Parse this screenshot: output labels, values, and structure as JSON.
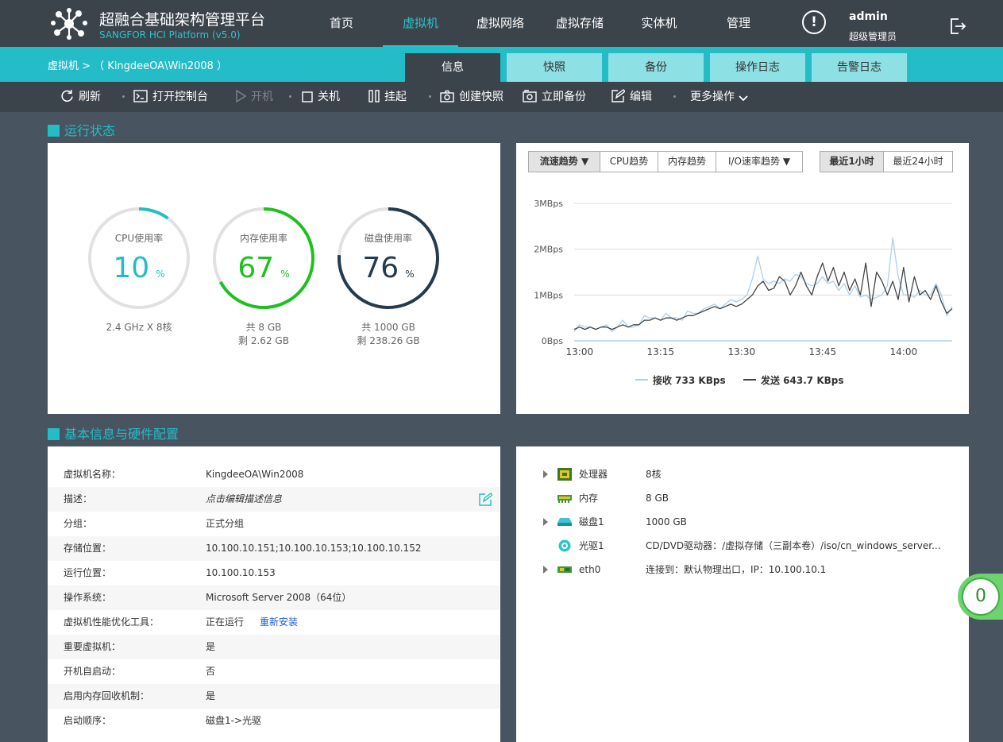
{
  "header": {
    "brand_title": "超融合基础架构管理平台",
    "brand_subtitle": "SANGFOR HCI Platform (v5.0)",
    "nav": [
      {
        "label": "首页",
        "active": false
      },
      {
        "label": "虚拟机",
        "active": true
      },
      {
        "label": "虚拟网络",
        "active": false
      },
      {
        "label": "虚拟存储",
        "active": false
      },
      {
        "label": "实体机",
        "active": false
      },
      {
        "label": "管理",
        "active": false
      }
    ],
    "alert_glyph": "!",
    "user": {
      "name": "admin",
      "role": "超级管理员"
    },
    "logout_icon": "logout-icon"
  },
  "breadcrumb": "虚拟机 >  （ KingdeeOA\\Win2008 ）",
  "tabs": [
    {
      "label": "信息",
      "active": true
    },
    {
      "label": "快照",
      "active": false
    },
    {
      "label": "备份",
      "active": false
    },
    {
      "label": "操作日志",
      "active": false
    },
    {
      "label": "告警日志",
      "active": false
    }
  ],
  "toolbar": {
    "refresh": "刷新",
    "console": "打开控制台",
    "power_on": "开机",
    "shutdown": "关机",
    "suspend": "挂起",
    "snapshot": "创建快照",
    "backup": "立即备份",
    "edit": "编辑",
    "more": "更多操作"
  },
  "sections": {
    "status": "运行状态",
    "info": "基本信息与硬件配置"
  },
  "gauges": [
    {
      "label": "CPU使用率",
      "value": 10,
      "unit": "%",
      "color": "#23bcc7",
      "info1": "2.4 GHz X 8核",
      "info2": ""
    },
    {
      "label": "内存使用率",
      "value": 67,
      "unit": "%",
      "color": "#1cc21c",
      "info1": "共 8 GB",
      "info2": "剩 2.62 GB"
    },
    {
      "label": "磁盘使用率",
      "value": 76,
      "unit": "%",
      "color": "#243a4d",
      "info1": "共 1000 GB",
      "info2": "剩 238.26 GB"
    }
  ],
  "chart_controls": {
    "trend_tabs": [
      "流速趋势",
      "CPU趋势",
      "内存趋势",
      "I/O速率趋势"
    ],
    "range_tabs": [
      "最近1小时",
      "最近24小时"
    ]
  },
  "chart_data": {
    "type": "line",
    "x": [
      "12:59",
      "13:00",
      "13:01",
      "13:02",
      "13:03",
      "13:04",
      "13:05",
      "13:06",
      "13:07",
      "13:08",
      "13:09",
      "13:10",
      "13:11",
      "13:12",
      "13:13",
      "13:14",
      "13:15",
      "13:16",
      "13:17",
      "13:18",
      "13:19",
      "13:20",
      "13:21",
      "13:22",
      "13:23",
      "13:24",
      "13:25",
      "13:26",
      "13:27",
      "13:28",
      "13:29",
      "13:30",
      "13:31",
      "13:32",
      "13:33",
      "13:34",
      "13:35",
      "13:36",
      "13:37",
      "13:38",
      "13:39",
      "13:40",
      "13:41",
      "13:42",
      "13:43",
      "13:44",
      "13:45",
      "13:46",
      "13:47",
      "13:48",
      "13:49",
      "13:50",
      "13:51",
      "13:52",
      "13:53",
      "13:54",
      "13:55",
      "13:56",
      "13:57",
      "13:58",
      "13:59",
      "14:00",
      "14:01",
      "14:02",
      "14:03",
      "14:04",
      "14:05",
      "14:06",
      "14:07",
      "14:08",
      "14:09"
    ],
    "series": [
      {
        "name": "接收",
        "color": "#a9d0f0",
        "values": [
          0.2,
          0.35,
          0.3,
          0.3,
          0.25,
          0.3,
          0.35,
          0.2,
          0.3,
          0.45,
          0.3,
          0.3,
          0.35,
          0.55,
          0.5,
          0.5,
          0.45,
          0.6,
          0.5,
          0.5,
          0.45,
          0.65,
          0.6,
          0.6,
          0.7,
          0.75,
          0.8,
          0.7,
          0.8,
          0.9,
          0.85,
          0.9,
          1.0,
          1.35,
          1.85,
          1.35,
          1.25,
          1.3,
          1.25,
          1.35,
          1.3,
          1.45,
          1.4,
          1.25,
          1.2,
          1.25,
          1.4,
          1.25,
          1.3,
          1.1,
          1.25,
          1.0,
          1.2,
          0.95,
          1.0,
          0.9,
          0.95,
          1.0,
          1.2,
          2.25,
          1.4,
          1.0,
          1.0,
          0.95,
          1.1,
          1.0,
          1.0,
          1.25,
          1.0,
          0.55,
          0.75
        ]
      },
      {
        "name": "发送",
        "color": "#444444",
        "values": [
          0.25,
          0.3,
          0.25,
          0.3,
          0.25,
          0.3,
          0.3,
          0.25,
          0.3,
          0.35,
          0.3,
          0.35,
          0.35,
          0.45,
          0.45,
          0.5,
          0.45,
          0.5,
          0.5,
          0.45,
          0.5,
          0.55,
          0.55,
          0.6,
          0.65,
          0.7,
          0.75,
          0.7,
          0.75,
          0.8,
          0.75,
          0.8,
          0.9,
          1.0,
          1.2,
          1.3,
          1.1,
          1.15,
          1.4,
          1.3,
          1.0,
          1.2,
          1.5,
          1.2,
          1.0,
          1.4,
          1.7,
          1.3,
          1.6,
          1.2,
          1.5,
          1.1,
          1.35,
          1.0,
          1.7,
          0.75,
          1.5,
          1.3,
          1.0,
          1.3,
          0.9,
          1.6,
          0.85,
          1.4,
          1.0,
          1.1,
          0.9,
          1.2,
          0.85,
          0.6,
          0.7
        ]
      }
    ],
    "ylim": [
      0,
      3
    ],
    "yticks": [
      "0Bps",
      "1MBps",
      "2MBps",
      "3MBps"
    ],
    "xticks": [
      "13:00",
      "13:15",
      "13:30",
      "13:45",
      "14:00"
    ],
    "legend": [
      {
        "name": "接收",
        "label": "接收 733 KBps",
        "color": "#a9d0f0"
      },
      {
        "name": "发送",
        "label": "发送 643.7 KBps",
        "color": "#444444"
      }
    ],
    "legend_position": "bottom-center",
    "grid": true
  },
  "basic_info": [
    {
      "key": "虚拟机名称：",
      "value": "KingdeeOA\\Win2008"
    },
    {
      "key": "描述：",
      "value": "点击编辑描述信息"
    },
    {
      "key": "分组：",
      "value": "正式分组"
    },
    {
      "key": "存储位置：",
      "value": "10.100.10.151;10.100.10.153;10.100.10.152"
    },
    {
      "key": "运行位置：",
      "value": "10.100.10.153"
    },
    {
      "key": "操作系统：",
      "value": "Microsoft Server 2008（64位）"
    },
    {
      "key": "虚拟机性能优化工具：",
      "value": "正在运行",
      "link": "重新安装"
    },
    {
      "key": "重要虚拟机：",
      "value": "是"
    },
    {
      "key": "开机自启动：",
      "value": "否"
    },
    {
      "key": "启用内存回收机制：",
      "value": "是"
    },
    {
      "key": "启动顺序：",
      "value": "磁盘1->光驱"
    }
  ],
  "hardware": [
    {
      "name": "处理器",
      "value": "8核",
      "icon": "cpu-icon",
      "expandable": true
    },
    {
      "name": "内存",
      "value": "8 GB",
      "icon": "memory-icon",
      "expandable": false
    },
    {
      "name": "磁盘1",
      "value": "1000 GB",
      "icon": "disk-icon",
      "expandable": true
    },
    {
      "name": "光驱1",
      "value": "CD/DVD驱动器：/虚拟存储（三副本卷）/iso/cn_windows_server...",
      "icon": "cdrom-icon",
      "expandable": false
    },
    {
      "name": "eth0",
      "value": "连接到：默认物理出口，IP：10.100.10.1",
      "icon": "network-card-icon",
      "expandable": true
    }
  ],
  "badge": {
    "count": "0"
  }
}
